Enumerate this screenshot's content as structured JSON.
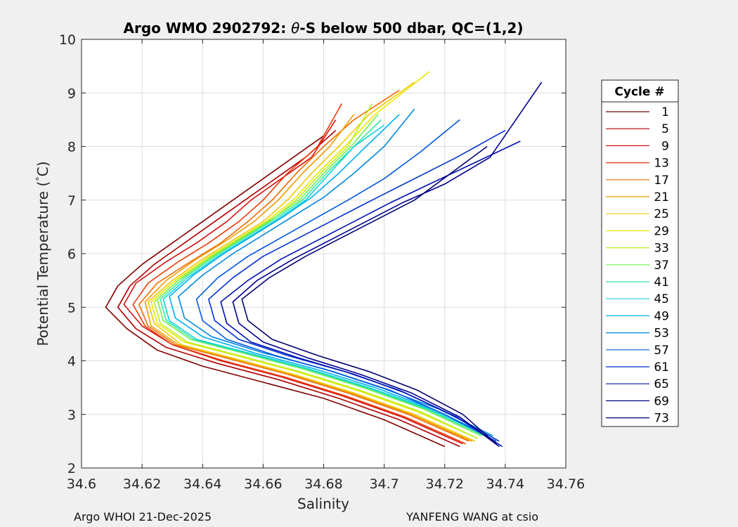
{
  "chart_data": {
    "type": "line",
    "title": "Argo WMO 2902792: θ-S below 500 dbar,  QC=(1,2)",
    "title_parts": {
      "prefix": "Argo WMO 2902792: ",
      "symbol": "θ",
      "suffix": "-S below 500 dbar,  QC=(1,2)"
    },
    "xlabel": "Salinity",
    "ylabel": "Potential Temperature (°C)",
    "ylabel_parts": {
      "prefix": "Potential Temperature (",
      "degree": "°",
      "suffix": "C)"
    },
    "xlim": [
      34.6,
      34.76
    ],
    "ylim": [
      2,
      10
    ],
    "xticks": [
      34.6,
      34.62,
      34.64,
      34.66,
      34.68,
      34.7,
      34.72,
      34.74,
      34.76
    ],
    "xtick_labels": [
      "34.6",
      "34.62",
      "34.64",
      "34.66",
      "34.68",
      "34.7",
      "34.72",
      "34.74",
      "34.76"
    ],
    "yticks": [
      2,
      3,
      4,
      5,
      6,
      7,
      8,
      9,
      10
    ],
    "ytick_labels": [
      "2",
      "3",
      "4",
      "5",
      "6",
      "7",
      "8",
      "9",
      "10"
    ],
    "grid": true,
    "legend": {
      "title": "Cycle #",
      "placement": "right-outside",
      "entries": [
        {
          "label": "1",
          "color": "#800000"
        },
        {
          "label": "5",
          "color": "#b00000"
        },
        {
          "label": "9",
          "color": "#d81010"
        },
        {
          "label": "13",
          "color": "#e83a08"
        },
        {
          "label": "17",
          "color": "#f06a00"
        },
        {
          "label": "21",
          "color": "#f09a00"
        },
        {
          "label": "25",
          "color": "#f0c800"
        },
        {
          "label": "29",
          "color": "#e8e800"
        },
        {
          "label": "33",
          "color": "#b8f020"
        },
        {
          "label": "37",
          "color": "#70f050"
        },
        {
          "label": "41",
          "color": "#30e8a0"
        },
        {
          "label": "45",
          "color": "#10d0d8"
        },
        {
          "label": "49",
          "color": "#00b0f0"
        },
        {
          "label": "53",
          "color": "#0088e0"
        },
        {
          "label": "57",
          "color": "#0058e0"
        },
        {
          "label": "61",
          "color": "#0030d0"
        },
        {
          "label": "65",
          "color": "#0010b0"
        },
        {
          "label": "69",
          "color": "#000090"
        },
        {
          "label": "73",
          "color": "#000070"
        }
      ]
    },
    "series": [
      {
        "name": "1",
        "color": "#800000",
        "x": [
          34.72,
          34.7,
          34.68,
          34.66,
          34.64,
          34.625,
          34.615,
          34.608,
          34.612,
          34.62,
          34.63,
          34.64,
          34.65,
          34.66,
          34.67,
          34.68
        ],
        "y": [
          2.4,
          2.9,
          3.3,
          3.6,
          3.9,
          4.2,
          4.6,
          5.0,
          5.4,
          5.8,
          6.2,
          6.6,
          7.0,
          7.4,
          7.8,
          8.2
        ]
      },
      {
        "name": "5",
        "color": "#b00000",
        "x": [
          34.725,
          34.705,
          34.685,
          34.665,
          34.645,
          34.628,
          34.618,
          34.612,
          34.616,
          34.624,
          34.634,
          34.644,
          34.654,
          34.664,
          34.674,
          34.684
        ],
        "y": [
          2.4,
          2.9,
          3.3,
          3.65,
          3.95,
          4.25,
          4.6,
          5.0,
          5.4,
          5.8,
          6.2,
          6.6,
          7.0,
          7.4,
          7.8,
          8.3
        ]
      },
      {
        "name": "9",
        "color": "#d81010",
        "x": [
          34.726,
          34.706,
          34.686,
          34.666,
          34.646,
          34.63,
          34.62,
          34.614,
          34.618,
          34.628,
          34.638,
          34.648,
          34.656,
          34.666,
          34.676,
          34.684
        ],
        "y": [
          2.45,
          2.95,
          3.35,
          3.7,
          4.0,
          4.3,
          4.65,
          5.05,
          5.45,
          5.85,
          6.2,
          6.6,
          7.0,
          7.4,
          7.8,
          8.5
        ]
      },
      {
        "name": "13",
        "color": "#e83a08",
        "x": [
          34.727,
          34.707,
          34.687,
          34.667,
          34.647,
          34.63,
          34.621,
          34.617,
          34.622,
          34.632,
          34.642,
          34.652,
          34.66,
          34.668,
          34.678,
          34.686
        ],
        "y": [
          2.45,
          2.95,
          3.35,
          3.7,
          4.0,
          4.3,
          4.65,
          5.05,
          5.45,
          5.85,
          6.2,
          6.6,
          7.0,
          7.5,
          8.0,
          8.8
        ]
      },
      {
        "name": "17",
        "color": "#f06a00",
        "x": [
          34.728,
          34.708,
          34.688,
          34.668,
          34.648,
          34.631,
          34.622,
          34.619,
          34.625,
          34.636,
          34.646,
          34.655,
          34.663,
          34.671,
          34.68,
          34.69,
          34.705
        ],
        "y": [
          2.5,
          3.0,
          3.4,
          3.75,
          4.05,
          4.3,
          4.65,
          5.05,
          5.45,
          5.85,
          6.2,
          6.6,
          7.0,
          7.5,
          8.0,
          8.5,
          9.05
        ]
      },
      {
        "name": "21",
        "color": "#f09a00",
        "x": [
          34.729,
          34.709,
          34.689,
          34.669,
          34.649,
          34.632,
          34.623,
          34.621,
          34.628,
          34.638,
          34.648,
          34.657,
          34.665,
          34.673,
          34.682,
          34.69
        ],
        "y": [
          2.5,
          3.0,
          3.4,
          3.75,
          4.05,
          4.3,
          4.65,
          5.1,
          5.5,
          5.9,
          6.25,
          6.6,
          7.0,
          7.5,
          8.0,
          8.6
        ]
      },
      {
        "name": "25",
        "color": "#f0c800",
        "x": [
          34.73,
          34.71,
          34.69,
          34.67,
          34.65,
          34.633,
          34.624,
          34.622,
          34.63,
          34.64,
          34.65,
          34.66,
          34.668,
          34.676,
          34.685,
          34.695,
          34.71
        ],
        "y": [
          2.5,
          3.0,
          3.4,
          3.75,
          4.05,
          4.3,
          4.7,
          5.1,
          5.5,
          5.9,
          6.25,
          6.6,
          7.0,
          7.5,
          8.0,
          8.6,
          9.2
        ]
      },
      {
        "name": "29",
        "color": "#e8e800",
        "x": [
          34.731,
          34.711,
          34.691,
          34.671,
          34.651,
          34.634,
          34.625,
          34.623,
          34.631,
          34.641,
          34.651,
          34.661,
          34.67,
          34.678,
          34.687,
          34.697,
          34.715
        ],
        "y": [
          2.55,
          3.05,
          3.45,
          3.8,
          4.1,
          4.35,
          4.7,
          5.1,
          5.5,
          5.9,
          6.25,
          6.6,
          7.0,
          7.5,
          8.0,
          8.6,
          9.4
        ]
      },
      {
        "name": "33",
        "color": "#b8f020",
        "x": [
          34.731,
          34.712,
          34.692,
          34.672,
          34.652,
          34.635,
          34.626,
          34.624,
          34.632,
          34.642,
          34.652,
          34.662,
          34.671,
          34.679,
          34.688,
          34.696
        ],
        "y": [
          2.55,
          3.05,
          3.45,
          3.8,
          4.1,
          4.35,
          4.7,
          5.1,
          5.5,
          5.9,
          6.25,
          6.6,
          7.0,
          7.5,
          8.0,
          8.8
        ]
      },
      {
        "name": "37",
        "color": "#70f050",
        "x": [
          34.732,
          34.713,
          34.693,
          34.673,
          34.653,
          34.636,
          34.627,
          34.625,
          34.633,
          34.643,
          34.653,
          34.663,
          34.672,
          34.68,
          34.689,
          34.698
        ],
        "y": [
          2.6,
          3.1,
          3.5,
          3.85,
          4.15,
          4.4,
          4.75,
          5.15,
          5.55,
          5.95,
          6.3,
          6.65,
          7.0,
          7.5,
          8.0,
          8.6
        ]
      },
      {
        "name": "41",
        "color": "#30e8a0",
        "x": [
          34.733,
          34.714,
          34.694,
          34.674,
          34.654,
          34.637,
          34.628,
          34.626,
          34.634,
          34.644,
          34.654,
          34.664,
          34.673,
          34.681,
          34.69,
          34.699
        ],
        "y": [
          2.6,
          3.1,
          3.5,
          3.85,
          4.15,
          4.4,
          4.75,
          5.15,
          5.55,
          5.95,
          6.3,
          6.65,
          7.0,
          7.5,
          8.0,
          8.5
        ]
      },
      {
        "name": "45",
        "color": "#10d0d8",
        "x": [
          34.734,
          34.715,
          34.695,
          34.675,
          34.655,
          34.638,
          34.629,
          34.627,
          34.635,
          34.645,
          34.655,
          34.665,
          34.674,
          34.682,
          34.69,
          34.7
        ],
        "y": [
          2.6,
          3.1,
          3.5,
          3.85,
          4.15,
          4.4,
          4.75,
          5.15,
          5.55,
          5.95,
          6.3,
          6.65,
          7.0,
          7.5,
          8.0,
          8.4
        ]
      },
      {
        "name": "49",
        "color": "#00b0f0",
        "x": [
          34.735,
          34.716,
          34.697,
          34.677,
          34.657,
          34.64,
          34.631,
          34.629,
          34.637,
          34.647,
          34.657,
          34.667,
          34.676,
          34.685,
          34.694,
          34.705
        ],
        "y": [
          2.6,
          3.1,
          3.5,
          3.85,
          4.15,
          4.45,
          4.8,
          5.2,
          5.6,
          6.0,
          6.35,
          6.7,
          7.05,
          7.5,
          8.0,
          8.6
        ]
      },
      {
        "name": "53",
        "color": "#0088e0",
        "x": [
          34.736,
          34.718,
          34.699,
          34.68,
          34.66,
          34.643,
          34.634,
          34.632,
          34.64,
          34.65,
          34.66,
          34.67,
          34.68,
          34.69,
          34.7,
          34.71
        ],
        "y": [
          2.6,
          3.1,
          3.5,
          3.85,
          4.15,
          4.45,
          4.8,
          5.2,
          5.6,
          6.0,
          6.35,
          6.7,
          7.05,
          7.5,
          8.0,
          8.7
        ]
      },
      {
        "name": "57",
        "color": "#0058e0",
        "x": [
          34.737,
          34.72,
          34.702,
          34.683,
          34.664,
          34.648,
          34.64,
          34.638,
          34.645,
          34.655,
          34.666,
          34.677,
          34.688,
          34.7,
          34.712,
          34.725
        ],
        "y": [
          2.5,
          3.0,
          3.45,
          3.8,
          4.1,
          4.4,
          4.75,
          5.15,
          5.55,
          5.95,
          6.3,
          6.65,
          7.0,
          7.4,
          7.9,
          8.5
        ]
      },
      {
        "name": "61",
        "color": "#0030d0",
        "x": [
          34.738,
          34.722,
          34.705,
          34.687,
          34.668,
          34.652,
          34.644,
          34.642,
          34.65,
          34.66,
          34.672,
          34.684,
          34.696,
          34.71,
          34.724,
          34.74
        ],
        "y": [
          2.5,
          3.0,
          3.45,
          3.8,
          4.1,
          4.4,
          4.75,
          5.15,
          5.55,
          5.95,
          6.3,
          6.65,
          7.0,
          7.4,
          7.8,
          8.3
        ]
      },
      {
        "name": "65",
        "color": "#0010b0",
        "x": [
          34.739,
          34.724,
          34.707,
          34.69,
          34.672,
          34.656,
          34.648,
          34.646,
          34.655,
          34.666,
          34.678,
          34.69,
          34.702,
          34.715,
          34.73,
          34.745
        ],
        "y": [
          2.4,
          2.95,
          3.4,
          3.75,
          4.05,
          4.35,
          4.7,
          5.1,
          5.5,
          5.9,
          6.25,
          6.6,
          6.95,
          7.3,
          7.7,
          8.1
        ]
      },
      {
        "name": "69",
        "color": "#000090",
        "x": [
          34.738,
          34.725,
          34.709,
          34.692,
          34.675,
          34.66,
          34.652,
          34.65,
          34.658,
          34.67,
          34.682,
          34.694,
          34.706,
          34.72,
          34.735,
          34.752
        ],
        "y": [
          2.4,
          2.95,
          3.4,
          3.75,
          4.05,
          4.35,
          4.7,
          5.1,
          5.5,
          5.9,
          6.25,
          6.6,
          6.95,
          7.3,
          7.8,
          9.2
        ]
      },
      {
        "name": "73",
        "color": "#000070",
        "x": [
          34.737,
          34.726,
          34.711,
          34.695,
          34.678,
          34.663,
          34.655,
          34.653,
          34.662,
          34.674,
          34.686,
          34.698,
          34.71,
          34.722,
          34.734
        ],
        "y": [
          2.45,
          3.0,
          3.45,
          3.8,
          4.1,
          4.4,
          4.75,
          5.15,
          5.55,
          5.95,
          6.3,
          6.65,
          7.0,
          7.5,
          8.0
        ]
      }
    ]
  },
  "footer": {
    "left": "Argo WHOI 21-Dec-2025",
    "right": "YANFENG WANG at csio"
  }
}
